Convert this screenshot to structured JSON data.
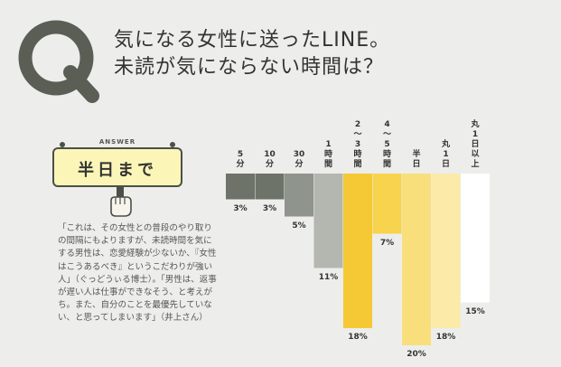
{
  "question": {
    "line1": "気になる女性に送ったLINE。",
    "line2": "未読が気にならない時間は？"
  },
  "answer": {
    "label": "ANSWER",
    "text": "半日まで"
  },
  "comment": "「これは、その女性との普段のやり取りの間隔にもよりますが、未読時間を気にする男性は、恋愛経験が少ないか、『女性はこうあるべき』というこだわりが強い人」（ぐっどうぃる博士）。「男性は、返事が遅い人は仕事ができなそう、と考えがち。また、自分のことを最優先していない、と思ってしまいます」（井上さん）",
  "colors": {
    "q_mark": "#5a5e55",
    "board": "#fbf6b7"
  },
  "chart_data": {
    "type": "bar",
    "categories": [
      "5分",
      "10分",
      "30分",
      "1時間",
      "2〜3時間",
      "4〜5時間",
      "半日",
      "丸1日",
      "丸1日以上"
    ],
    "category_lines": [
      [
        "5",
        "分"
      ],
      [
        "10",
        "分"
      ],
      [
        "30",
        "分"
      ],
      [
        "1",
        "時",
        "間"
      ],
      [
        "2",
        "〜",
        "3",
        "時",
        "間"
      ],
      [
        "4",
        "〜",
        "5",
        "時",
        "間"
      ],
      [
        "半",
        "日"
      ],
      [
        "丸",
        "1",
        "日"
      ],
      [
        "丸",
        "1",
        "日",
        "以",
        "上"
      ]
    ],
    "values": [
      3,
      3,
      5,
      11,
      18,
      7,
      20,
      18,
      15
    ],
    "value_labels": [
      "3%",
      "3%",
      "5%",
      "11%",
      "18%",
      "7%",
      "20%",
      "18%",
      "15%"
    ],
    "colors": [
      "#6e7369",
      "#6e7369",
      "#8f948c",
      "#b3b7b0",
      "#f5c935",
      "#f7d34e",
      "#f9df7c",
      "#fbeaa8",
      "#ffffff"
    ],
    "ylim": [
      0,
      20
    ]
  }
}
